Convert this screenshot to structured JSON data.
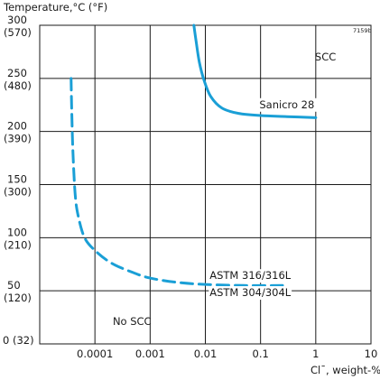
{
  "chart_data": {
    "type": "line",
    "figure_code": "7159b",
    "ylabel": "Temperature,°C (°F)",
    "xlabel": "Cl¯, weight-%",
    "xscale": "log",
    "xlim": [
      1e-05,
      10
    ],
    "ylim": [
      0,
      300
    ],
    "grid": true,
    "x_ticks": [
      {
        "value": 0.0001,
        "label": "0.0001"
      },
      {
        "value": 0.001,
        "label": "0.001"
      },
      {
        "value": 0.01,
        "label": "0.01"
      },
      {
        "value": 0.1,
        "label": "0.1"
      },
      {
        "value": 1,
        "label": "1"
      },
      {
        "value": 10,
        "label": "10"
      }
    ],
    "y_ticks": [
      {
        "value": 0,
        "label": "0 (32)",
        "c": "0",
        "f": "(32)"
      },
      {
        "value": 50,
        "label": "50 (120)",
        "c": "50",
        "f": "(120)"
      },
      {
        "value": 100,
        "label": "100 (210)",
        "c": "100",
        "f": "(210)"
      },
      {
        "value": 150,
        "label": "150 (300)",
        "c": "150",
        "f": "(300)"
      },
      {
        "value": 200,
        "label": "200 (390)",
        "c": "200",
        "f": "(390)"
      },
      {
        "value": 250,
        "label": "250 (480)",
        "c": "250",
        "f": "(480)"
      },
      {
        "value": 300,
        "label": "300 (570)",
        "c": "300",
        "f": "(570)"
      }
    ],
    "region_labels": [
      {
        "text": "SCC",
        "x": 1.5,
        "y": 267
      },
      {
        "text": "No SCC",
        "x": 0.00047,
        "y": 18
      }
    ],
    "series": [
      {
        "name": "Sanicro 28",
        "style": "solid",
        "color": "#1a9fd6",
        "x": [
          0.0062,
          0.0068,
          0.0078,
          0.0095,
          0.0125,
          0.02,
          0.04,
          0.1,
          0.3,
          1.0
        ],
        "y": [
          300,
          285,
          265,
          248,
          233,
          222,
          217,
          215,
          214,
          213
        ],
        "label": {
          "text": "Sanicro 28",
          "x": 0.3,
          "y": 222
        }
      },
      {
        "name": "ASTM 316/316L",
        "style": "dashed",
        "color": "#1a9fd6",
        "x": [
          3.7e-05,
          3.8e-05,
          4e-05,
          4.4e-05,
          5e-05,
          6.5e-05,
          0.0001,
          0.0002,
          0.0005,
          0.001,
          0.003,
          0.01,
          0.05,
          0.25
        ],
        "y": [
          250,
          220,
          180,
          140,
          120,
          100,
          88,
          76,
          67,
          62,
          58,
          56,
          55,
          55
        ],
        "label": {
          "text": "ASTM 316/316L",
          "x": 0.065,
          "y": 61
        }
      },
      {
        "name": "ASTM 304/304L",
        "label": {
          "text": "ASTM 304/304L",
          "x": 0.065,
          "y": 45
        }
      }
    ]
  }
}
